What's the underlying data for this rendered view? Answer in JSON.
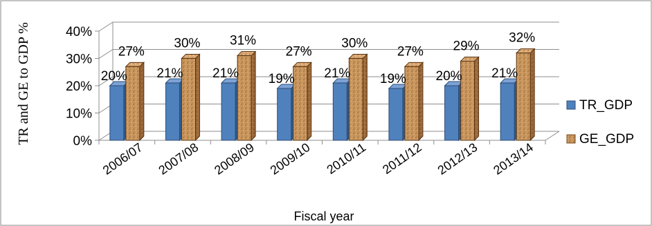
{
  "chart_data": {
    "type": "bar",
    "title": "",
    "xlabel": "Fiscal year",
    "ylabel": "TR and GE to GDP %",
    "ylim": [
      0,
      40
    ],
    "y_ticks": [
      "0%",
      "10%",
      "20%",
      "30%",
      "40%"
    ],
    "y_tick_values": [
      0,
      10,
      20,
      30,
      40
    ],
    "grid": true,
    "legend_position": "right",
    "categories": [
      "2006/07",
      "2007/08",
      "2008/09",
      "2009/10",
      "2010/11",
      "2011/12",
      "2012/13",
      "2013/14"
    ],
    "series": [
      {
        "name": "TR_GDP",
        "values": [
          20,
          21,
          21,
          19,
          21,
          19,
          20,
          21
        ],
        "labels": [
          "20%",
          "21%",
          "21%",
          "19%",
          "21%",
          "19%",
          "20%",
          "21%"
        ],
        "color": "#4f81bd"
      },
      {
        "name": "GE_GDP",
        "values": [
          27,
          30,
          31,
          27,
          30,
          27,
          29,
          32
        ],
        "labels": [
          "27%",
          "30%",
          "31%",
          "27%",
          "30%",
          "27%",
          "29%",
          "32%"
        ],
        "color": "#c8955c"
      }
    ]
  }
}
